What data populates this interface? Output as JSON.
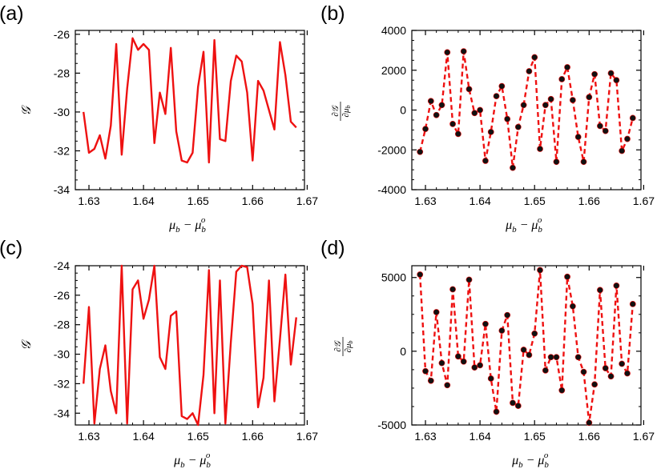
{
  "figure": {
    "panels": [
      "(a)",
      "(b)",
      "(c)",
      "(d)"
    ]
  },
  "style": {
    "line_color": "#ee1111",
    "marker_color": "#111111",
    "axis_color": "#000000"
  },
  "chart_data": [
    {
      "id": "a",
      "panel_label": "(a)",
      "type": "line",
      "line_style": "solid",
      "markers": false,
      "xlabel_main": "μ",
      "xlabel_sub1": "b",
      "xlabel_minus": " − μ",
      "xlabel_sub2": "b",
      "xlabel_sup2": "o",
      "ylabel": "𝒢",
      "xlim": [
        1.6275,
        1.6695
      ],
      "ylim": [
        -34,
        -25.8
      ],
      "xticks": [
        1.63,
        1.64,
        1.65,
        1.66,
        1.67
      ],
      "xtick_labels": [
        "1.63",
        "1.64",
        "1.65",
        "1.66",
        "1.67"
      ],
      "yticks": [
        -34,
        -32,
        -30,
        -28,
        -26
      ],
      "ytick_labels": [
        "-34",
        "-32",
        "-30",
        "-28",
        "-26"
      ],
      "x": [
        1.629,
        1.63,
        1.631,
        1.632,
        1.633,
        1.634,
        1.635,
        1.636,
        1.637,
        1.638,
        1.639,
        1.64,
        1.641,
        1.642,
        1.643,
        1.644,
        1.645,
        1.646,
        1.647,
        1.648,
        1.649,
        1.65,
        1.651,
        1.652,
        1.653,
        1.654,
        1.655,
        1.656,
        1.657,
        1.658,
        1.659,
        1.66,
        1.661,
        1.662,
        1.663,
        1.664,
        1.665,
        1.666,
        1.667,
        1.668
      ],
      "y": [
        -30.0,
        -32.1,
        -31.9,
        -31.2,
        -32.4,
        -30.7,
        -26.5,
        -32.2,
        -28.8,
        -26.2,
        -26.8,
        -26.5,
        -26.8,
        -31.6,
        -29.0,
        -30.1,
        -26.7,
        -31.0,
        -32.5,
        -32.6,
        -32.1,
        -28.7,
        -26.9,
        -32.6,
        -26.3,
        -31.4,
        -31.5,
        -28.4,
        -27.1,
        -27.4,
        -29.0,
        -32.5,
        -28.4,
        -28.9,
        -29.9,
        -30.9,
        -26.4,
        -28.1,
        -30.5,
        -30.8
      ]
    },
    {
      "id": "b",
      "panel_label": "(b)",
      "type": "line",
      "line_style": "dashed",
      "markers": true,
      "xlabel_main": "μ",
      "xlabel_sub1": "b",
      "xlabel_minus": " − μ",
      "xlabel_sub2": "b",
      "xlabel_sup2": "o",
      "ylabel_num": "∂𝒢",
      "ylabel_den": "∂μ",
      "ylabel_den_sub": "b",
      "xlim": [
        1.6275,
        1.6695
      ],
      "ylim": [
        -4000,
        4000
      ],
      "xticks": [
        1.63,
        1.64,
        1.65,
        1.66,
        1.67
      ],
      "xtick_labels": [
        "1.63",
        "1.64",
        "1.65",
        "1.66",
        "1.67"
      ],
      "yticks": [
        -4000,
        -2000,
        0,
        2000,
        4000
      ],
      "ytick_labels": [
        "-4000",
        "-2000",
        "0",
        "2000",
        "4000"
      ],
      "x": [
        1.629,
        1.63,
        1.631,
        1.632,
        1.633,
        1.634,
        1.635,
        1.636,
        1.637,
        1.638,
        1.639,
        1.64,
        1.641,
        1.642,
        1.643,
        1.644,
        1.645,
        1.646,
        1.647,
        1.648,
        1.649,
        1.65,
        1.651,
        1.652,
        1.653,
        1.654,
        1.655,
        1.656,
        1.657,
        1.658,
        1.659,
        1.66,
        1.661,
        1.662,
        1.663,
        1.664,
        1.665,
        1.666,
        1.667,
        1.668
      ],
      "y": [
        -2100,
        -950,
        450,
        -250,
        250,
        2900,
        -700,
        -1200,
        2950,
        1050,
        -150,
        0,
        -2550,
        -1100,
        700,
        1200,
        -450,
        -2900,
        -850,
        250,
        1950,
        2650,
        -1950,
        250,
        550,
        -2600,
        1550,
        2150,
        500,
        -1350,
        -2600,
        650,
        1800,
        -800,
        -1050,
        1850,
        1500,
        -2050,
        -1450,
        -400
      ]
    },
    {
      "id": "c",
      "panel_label": "(c)",
      "type": "line",
      "line_style": "solid",
      "markers": false,
      "xlabel_main": "μ",
      "xlabel_sub1": "b",
      "xlabel_minus": " − μ",
      "xlabel_sub2": "b",
      "xlabel_sup2": "o",
      "ylabel": "𝒢",
      "xlim": [
        1.6275,
        1.6695
      ],
      "ylim": [
        -34.8,
        -24
      ],
      "xticks": [
        1.63,
        1.64,
        1.65,
        1.66,
        1.67
      ],
      "xtick_labels": [
        "1.63",
        "1.64",
        "1.65",
        "1.66",
        "1.67"
      ],
      "yticks": [
        -34,
        -32,
        -30,
        -28,
        -26,
        -24
      ],
      "ytick_labels": [
        "-34",
        "-32",
        "-30",
        "-28",
        "-26",
        "-24"
      ],
      "x": [
        1.629,
        1.63,
        1.631,
        1.632,
        1.633,
        1.634,
        1.635,
        1.636,
        1.637,
        1.638,
        1.639,
        1.64,
        1.641,
        1.642,
        1.643,
        1.644,
        1.645,
        1.646,
        1.647,
        1.648,
        1.649,
        1.65,
        1.651,
        1.652,
        1.653,
        1.654,
        1.655,
        1.656,
        1.657,
        1.658,
        1.659,
        1.66,
        1.661,
        1.662,
        1.663,
        1.664,
        1.665,
        1.666,
        1.667,
        1.668
      ],
      "y": [
        -32.0,
        -26.8,
        -34.7,
        -31.0,
        -29.4,
        -32.5,
        -34.0,
        -24.0,
        -34.7,
        -25.6,
        -25.0,
        -27.6,
        -26.3,
        -24.0,
        -30.2,
        -31.0,
        -27.4,
        -27.1,
        -34.2,
        -34.4,
        -34.0,
        -34.8,
        -31.4,
        -24.3,
        -34.0,
        -25.0,
        -34.7,
        -29.2,
        -24.4,
        -24.0,
        -24.1,
        -26.6,
        -33.6,
        -31.6,
        -25.0,
        -33.2,
        -29.0,
        -24.6,
        -30.7,
        -27.5
      ]
    },
    {
      "id": "d",
      "panel_label": "(d)",
      "type": "line",
      "line_style": "dashed",
      "markers": true,
      "xlabel_main": "μ",
      "xlabel_sub1": "b",
      "xlabel_minus": " − μ",
      "xlabel_sub2": "b",
      "xlabel_sup2": "o",
      "ylabel_num": "∂𝒢",
      "ylabel_den": "∂μ",
      "ylabel_den_sub": "b",
      "xlim": [
        1.6275,
        1.6695
      ],
      "ylim": [
        -5000,
        5800
      ],
      "xticks": [
        1.63,
        1.64,
        1.65,
        1.66,
        1.67
      ],
      "xtick_labels": [
        "1.63",
        "1.64",
        "1.65",
        "1.66",
        "1.67"
      ],
      "yticks": [
        -5000,
        0,
        5000
      ],
      "ytick_labels": [
        "-5000",
        "0",
        "5000"
      ],
      "x": [
        1.629,
        1.63,
        1.631,
        1.632,
        1.633,
        1.634,
        1.635,
        1.636,
        1.637,
        1.638,
        1.639,
        1.64,
        1.641,
        1.642,
        1.643,
        1.644,
        1.645,
        1.646,
        1.647,
        1.648,
        1.649,
        1.65,
        1.651,
        1.652,
        1.653,
        1.654,
        1.655,
        1.656,
        1.657,
        1.658,
        1.659,
        1.66,
        1.661,
        1.662,
        1.663,
        1.664,
        1.665,
        1.666,
        1.667,
        1.668
      ],
      "y": [
        5200,
        -1350,
        -2000,
        2650,
        -800,
        -2300,
        4200,
        -350,
        -700,
        4850,
        -1100,
        -950,
        1850,
        -1850,
        -4100,
        1400,
        2450,
        -3500,
        -3700,
        100,
        -250,
        1200,
        5500,
        -1300,
        -400,
        -400,
        -2650,
        5050,
        3050,
        -400,
        -1400,
        -4850,
        -2250,
        4150,
        -1150,
        -1700,
        4450,
        -850,
        -1500,
        3200
      ]
    }
  ]
}
